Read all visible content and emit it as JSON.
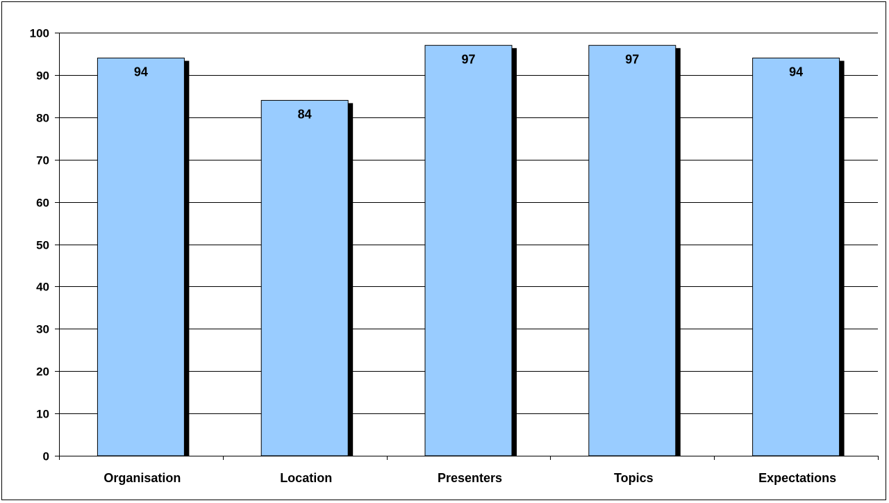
{
  "chart_data": {
    "type": "bar",
    "categories": [
      "Organisation",
      "Location",
      "Presenters",
      "Topics",
      "Expectations"
    ],
    "values": [
      94,
      84,
      97,
      97,
      94
    ],
    "data_labels": [
      "94",
      "84",
      "97",
      "97",
      "94"
    ],
    "title": "",
    "xlabel": "",
    "ylabel": "",
    "ylim": [
      0,
      100
    ],
    "yticks": [
      0,
      10,
      20,
      30,
      40,
      50,
      60,
      70,
      80,
      90,
      100
    ],
    "grid": true,
    "legend": "none",
    "bar_color": "#99ccff",
    "bar_shadow_color": "#000000",
    "gridline_color": "#000000"
  }
}
